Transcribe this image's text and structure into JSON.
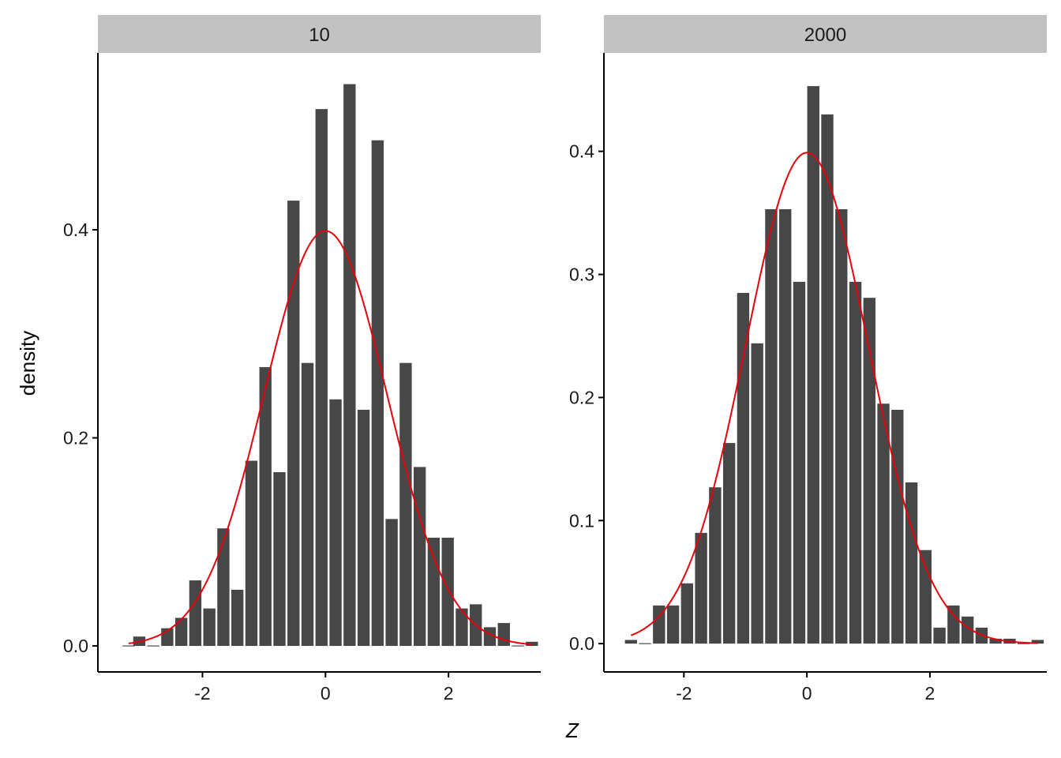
{
  "chart_data": {
    "type": "bar",
    "xlabel": "Z",
    "ylabel": "density",
    "overlay_curve": "normal density (mean 0, sd 1)",
    "colors": {
      "bar": "#474747",
      "curve": "#e8000b",
      "strip": "#c2c2c2"
    },
    "facets": [
      {
        "strip_label": "10",
        "xlim": [
          -3.7,
          3.5
        ],
        "ylim": [
          -0.025,
          0.57
        ],
        "xticks": [
          "-2",
          "0",
          "2"
        ],
        "yticks": [
          "0.0",
          "0.2",
          "0.4"
        ],
        "bin_width": 0.228,
        "bins": [
          {
            "x": -3.2,
            "density": 0.0
          },
          {
            "x": -3.027,
            "density": 0.009
          },
          {
            "x": -2.8,
            "density": 0.0
          },
          {
            "x": -2.572,
            "density": 0.017
          },
          {
            "x": -2.344,
            "density": 0.027
          },
          {
            "x": -2.116,
            "density": 0.063
          },
          {
            "x": -1.888,
            "density": 0.036
          },
          {
            "x": -1.66,
            "density": 0.113
          },
          {
            "x": -1.432,
            "density": 0.054
          },
          {
            "x": -1.204,
            "density": 0.178
          },
          {
            "x": -0.976,
            "density": 0.268
          },
          {
            "x": -0.748,
            "density": 0.167
          },
          {
            "x": -0.52,
            "density": 0.428
          },
          {
            "x": -0.292,
            "density": 0.272
          },
          {
            "x": -0.064,
            "density": 0.516
          },
          {
            "x": 0.164,
            "density": 0.237
          },
          {
            "x": 0.392,
            "density": 0.54
          },
          {
            "x": 0.62,
            "density": 0.227
          },
          {
            "x": 0.848,
            "density": 0.486
          },
          {
            "x": 1.076,
            "density": 0.122
          },
          {
            "x": 1.304,
            "density": 0.272
          },
          {
            "x": 1.532,
            "density": 0.172
          },
          {
            "x": 1.76,
            "density": 0.104
          },
          {
            "x": 1.988,
            "density": 0.104
          },
          {
            "x": 2.216,
            "density": 0.036
          },
          {
            "x": 2.444,
            "density": 0.04
          },
          {
            "x": 2.672,
            "density": 0.018
          },
          {
            "x": 2.9,
            "density": 0.022
          },
          {
            "x": 3.128,
            "density": 0.0
          },
          {
            "x": 3.356,
            "density": 0.004
          }
        ]
      },
      {
        "strip_label": "2000",
        "xlim": [
          -3.3,
          3.9
        ],
        "ylim": [
          -0.023,
          0.48
        ],
        "xticks": [
          "-2",
          "0",
          "2"
        ],
        "yticks": [
          "0.0",
          "0.1",
          "0.2",
          "0.3",
          "0.4"
        ],
        "bin_width": 0.228,
        "bins": [
          {
            "x": -2.86,
            "density": 0.003
          },
          {
            "x": -2.632,
            "density": 0.0
          },
          {
            "x": -2.404,
            "density": 0.031
          },
          {
            "x": -2.176,
            "density": 0.031
          },
          {
            "x": -1.948,
            "density": 0.049
          },
          {
            "x": -1.72,
            "density": 0.09
          },
          {
            "x": -1.492,
            "density": 0.127
          },
          {
            "x": -1.264,
            "density": 0.163
          },
          {
            "x": -1.036,
            "density": 0.285
          },
          {
            "x": -0.808,
            "density": 0.244
          },
          {
            "x": -0.58,
            "density": 0.353
          },
          {
            "x": -0.352,
            "density": 0.353
          },
          {
            "x": -0.124,
            "density": 0.294
          },
          {
            "x": 0.104,
            "density": 0.453
          },
          {
            "x": 0.332,
            "density": 0.43
          },
          {
            "x": 0.56,
            "density": 0.353
          },
          {
            "x": 0.788,
            "density": 0.294
          },
          {
            "x": 1.016,
            "density": 0.281
          },
          {
            "x": 1.244,
            "density": 0.195
          },
          {
            "x": 1.472,
            "density": 0.19
          },
          {
            "x": 1.7,
            "density": 0.131
          },
          {
            "x": 1.928,
            "density": 0.076
          },
          {
            "x": 2.156,
            "density": 0.013
          },
          {
            "x": 2.384,
            "density": 0.031
          },
          {
            "x": 2.612,
            "density": 0.022
          },
          {
            "x": 2.84,
            "density": 0.013
          },
          {
            "x": 3.068,
            "density": 0.004
          },
          {
            "x": 3.296,
            "density": 0.004
          },
          {
            "x": 3.524,
            "density": 0.0
          },
          {
            "x": 3.752,
            "density": 0.003
          }
        ]
      }
    ]
  }
}
